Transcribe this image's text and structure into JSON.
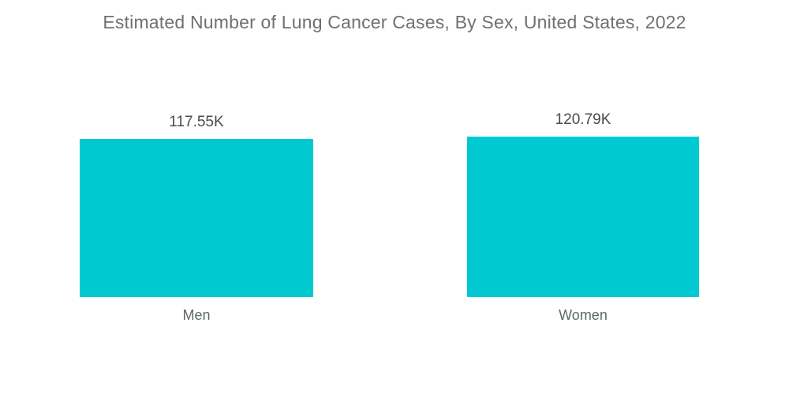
{
  "title": "Estimated Number of Lung Cancer Cases, By Sex, United States, 2022",
  "colors": {
    "background": "#FFFFFF",
    "bar": "#00C9D2",
    "title_text": "#707070",
    "value_text": "#4B4B4B",
    "category_text": "#5D686B"
  },
  "chart_data": {
    "type": "bar",
    "title": "Estimated Number of Lung Cancer Cases, By Sex, United States, 2022",
    "categories": [
      "Men",
      "Women"
    ],
    "values": [
      117.55,
      120.79
    ],
    "unit": "K",
    "value_labels": [
      "117.55K",
      "120.79K"
    ],
    "xlabel": "",
    "ylabel": "",
    "ylim": [
      0,
      124
    ],
    "grid": false,
    "legend": false,
    "axes_visible": false,
    "orientation": "vertical"
  }
}
